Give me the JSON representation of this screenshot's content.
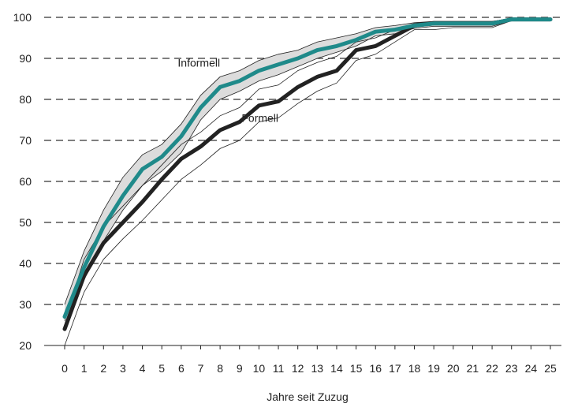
{
  "chart_data": {
    "type": "line",
    "xlabel": "Jahre seit Zuzug",
    "ylabel": "",
    "xlim": [
      0,
      25
    ],
    "ylim": [
      20,
      100
    ],
    "x": [
      0,
      1,
      2,
      3,
      4,
      5,
      6,
      7,
      8,
      9,
      10,
      11,
      12,
      13,
      14,
      15,
      16,
      17,
      18,
      19,
      20,
      21,
      22,
      23,
      24,
      25
    ],
    "y_ticks": [
      20,
      30,
      40,
      50,
      60,
      70,
      80,
      90,
      100
    ],
    "grid": "horizontal-dashed",
    "series": [
      {
        "name": "Informell",
        "color": "#1f8a8a",
        "values": [
          27,
          39,
          49,
          56.5,
          63,
          66,
          71,
          78,
          83,
          84.5,
          87,
          88.5,
          90,
          92,
          93,
          94.5,
          96.5,
          97,
          98,
          98.5,
          98.5,
          98.5,
          98.5,
          99.5,
          99.5,
          99.5
        ],
        "band_upper": [
          30,
          43,
          53,
          61,
          66.5,
          69,
          74,
          81,
          85.5,
          87,
          89.5,
          91,
          92,
          94,
          95,
          96,
          97.5,
          98,
          98.7,
          99,
          99,
          99,
          99,
          99.7,
          99.7,
          99.7
        ],
        "band_lower": [
          25,
          36,
          45.5,
          53,
          59,
          62.5,
          67,
          75,
          80,
          82,
          84.5,
          86,
          88,
          90,
          91.5,
          93,
          95.5,
          96,
          97.3,
          97.8,
          97.8,
          97.8,
          97.8,
          99.2,
          99.2,
          99.2
        ]
      },
      {
        "name": "Formell",
        "color": "#222222",
        "values": [
          24,
          37,
          45,
          50,
          55,
          60.5,
          65.5,
          68.5,
          72.5,
          74.5,
          78.5,
          79.5,
          83,
          85.5,
          87,
          92,
          93,
          95.5,
          98,
          98.5,
          98.5,
          98.5,
          98.5,
          99.5,
          99.5,
          99.5
        ],
        "band_upper": [
          26,
          41,
          49,
          54,
          59,
          64,
          69,
          72,
          76,
          78,
          82.5,
          83.5,
          87,
          89,
          90.5,
          94,
          95,
          97,
          98.5,
          99,
          99,
          99,
          99,
          99.7,
          99.7,
          99.7
        ],
        "band_lower": [
          20,
          33,
          41,
          46,
          50.5,
          55.5,
          60.5,
          64,
          68,
          70,
          74.5,
          75.5,
          79,
          82,
          84,
          89.5,
          91,
          94,
          97,
          97,
          97.5,
          97.5,
          97.5,
          99.2,
          99.2,
          99.2
        ]
      }
    ],
    "annotations": [
      {
        "text": "Informell",
        "x": 8,
        "y": 88
      },
      {
        "text": "Formell",
        "x": 11,
        "y": 74.5
      }
    ]
  }
}
